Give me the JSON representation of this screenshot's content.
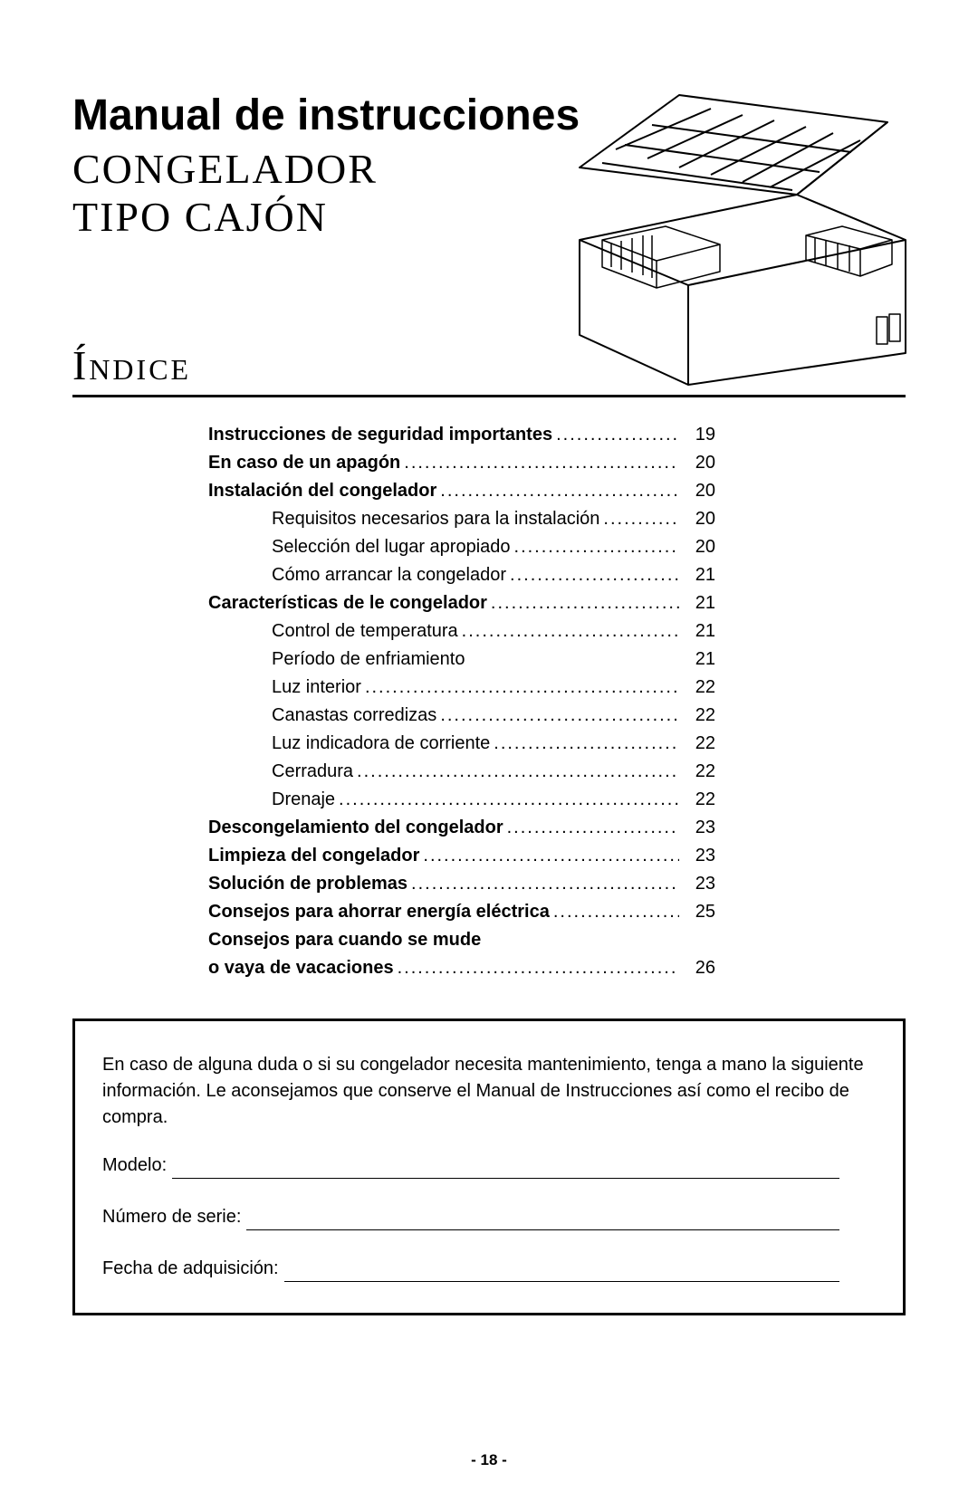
{
  "title_main": "Manual de instrucciones",
  "title_sub_line1": "CONGELADOR",
  "title_sub_line2": "TIPO CAJÓN",
  "indice_label": "Índice",
  "toc": [
    {
      "label": "Instrucciones de seguridad importantes",
      "page": "19",
      "bold": true,
      "sub": false
    },
    {
      "label": "En caso de un apagón",
      "page": "20",
      "bold": true,
      "sub": false
    },
    {
      "label": "Instalación del congelador",
      "page": "20",
      "bold": true,
      "sub": false
    },
    {
      "label": "Requisitos necesarios para la instalación",
      "page": "20",
      "bold": false,
      "sub": true
    },
    {
      "label": "Selección del lugar apropiado",
      "page": "20",
      "bold": false,
      "sub": true
    },
    {
      "label": "Cómo arrancar la congelador",
      "page": "21",
      "bold": false,
      "sub": true
    },
    {
      "label": "Características de le congelador",
      "page": "21",
      "bold": true,
      "sub": false
    },
    {
      "label": "Control de temperatura",
      "page": "21",
      "bold": false,
      "sub": true
    },
    {
      "label": "Período de enfriamiento",
      "page": "21",
      "bold": false,
      "sub": true,
      "nodots": true
    },
    {
      "label": "Luz interior",
      "page": "22",
      "bold": false,
      "sub": true
    },
    {
      "label": "Canastas corredizas",
      "page": "22",
      "bold": false,
      "sub": true
    },
    {
      "label": "Luz indicadora de corriente",
      "page": "22",
      "bold": false,
      "sub": true
    },
    {
      "label": "Cerradura",
      "page": "22",
      "bold": false,
      "sub": true
    },
    {
      "label": "Drenaje",
      "page": "22",
      "bold": false,
      "sub": true
    },
    {
      "label": "Descongelamiento del congelador",
      "page": "23",
      "bold": true,
      "sub": false
    },
    {
      "label": "Limpieza del congelador",
      "page": "23",
      "bold": true,
      "sub": false
    },
    {
      "label": "Solución de problemas",
      "page": "23",
      "bold": true,
      "sub": false
    },
    {
      "label": "Consejos para ahorrar energía eléctrica",
      "page": "25",
      "bold": true,
      "sub": false
    },
    {
      "label": "Consejos para cuando se mude",
      "page": "",
      "bold": true,
      "sub": false,
      "nodots": true
    },
    {
      "label": "o vaya de vacaciones",
      "page": "26",
      "bold": true,
      "sub": false
    }
  ],
  "info_box": {
    "paragraph": "En caso de alguna duda o si su congelador necesita mantenimiento, tenga a mano la siguiente información. Le aconsejamos que conserve el Manual de Instrucciones así como el recibo de compra.",
    "field_model": "Modelo:",
    "field_serial": "Número de serie:",
    "field_date": "Fecha de adquisición:"
  },
  "page_number": "- 18 -"
}
